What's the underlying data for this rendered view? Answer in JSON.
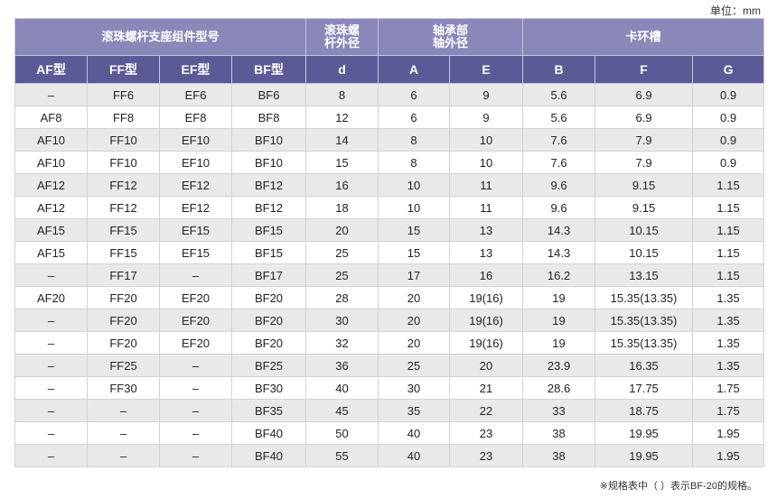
{
  "unit_label": "单位：mm",
  "header": {
    "group_model": "滚珠螺杆支座组件型号",
    "shaft_od_l1": "滚珠螺",
    "shaft_od_l2": "杆外径",
    "bearing_l1": "轴承部",
    "bearing_l2": "轴外径",
    "snap_ring": "卡环槽",
    "af": "AF型",
    "ff": "FF型",
    "ef": "EF型",
    "bf": "BF型",
    "d": "d",
    "a": "A",
    "e": "E",
    "b": "B",
    "f": "F",
    "g": "G"
  },
  "rows": [
    [
      "–",
      "FF6",
      "EF6",
      "BF6",
      "8",
      "6",
      "9",
      "5.6",
      "6.9",
      "0.9"
    ],
    [
      "AF8",
      "FF8",
      "EF8",
      "BF8",
      "12",
      "6",
      "9",
      "5.6",
      "6.9",
      "0.9"
    ],
    [
      "AF10",
      "FF10",
      "EF10",
      "BF10",
      "14",
      "8",
      "10",
      "7.6",
      "7.9",
      "0.9"
    ],
    [
      "AF10",
      "FF10",
      "EF10",
      "BF10",
      "15",
      "8",
      "10",
      "7.6",
      "7.9",
      "0.9"
    ],
    [
      "AF12",
      "FF12",
      "EF12",
      "BF12",
      "16",
      "10",
      "11",
      "9.6",
      "9.15",
      "1.15"
    ],
    [
      "AF12",
      "FF12",
      "EF12",
      "BF12",
      "18",
      "10",
      "11",
      "9.6",
      "9.15",
      "1.15"
    ],
    [
      "AF15",
      "FF15",
      "EF15",
      "BF15",
      "20",
      "15",
      "13",
      "14.3",
      "10.15",
      "1.15"
    ],
    [
      "AF15",
      "FF15",
      "EF15",
      "BF15",
      "25",
      "15",
      "13",
      "14.3",
      "10.15",
      "1.15"
    ],
    [
      "–",
      "FF17",
      "–",
      "BF17",
      "25",
      "17",
      "16",
      "16.2",
      "13.15",
      "1.15"
    ],
    [
      "AF20",
      "FF20",
      "EF20",
      "BF20",
      "28",
      "20",
      "19(16)",
      "19",
      "15.35(13.35)",
      "1.35"
    ],
    [
      "–",
      "FF20",
      "EF20",
      "BF20",
      "30",
      "20",
      "19(16)",
      "19",
      "15.35(13.35)",
      "1.35"
    ],
    [
      "–",
      "FF20",
      "EF20",
      "BF20",
      "32",
      "20",
      "19(16)",
      "19",
      "15.35(13.35)",
      "1.35"
    ],
    [
      "–",
      "FF25",
      "–",
      "BF25",
      "36",
      "25",
      "20",
      "23.9",
      "16.35",
      "1.35"
    ],
    [
      "–",
      "FF30",
      "–",
      "BF30",
      "40",
      "30",
      "21",
      "28.6",
      "17.75",
      "1.75"
    ],
    [
      "–",
      "–",
      "–",
      "BF35",
      "45",
      "35",
      "22",
      "33",
      "18.75",
      "1.75"
    ],
    [
      "–",
      "–",
      "–",
      "BF40",
      "50",
      "40",
      "23",
      "38",
      "19.95",
      "1.95"
    ],
    [
      "–",
      "–",
      "–",
      "BF40",
      "55",
      "40",
      "23",
      "38",
      "19.95",
      "1.95"
    ]
  ],
  "note": "※规格表中（ ）表示BF-20的规格。"
}
